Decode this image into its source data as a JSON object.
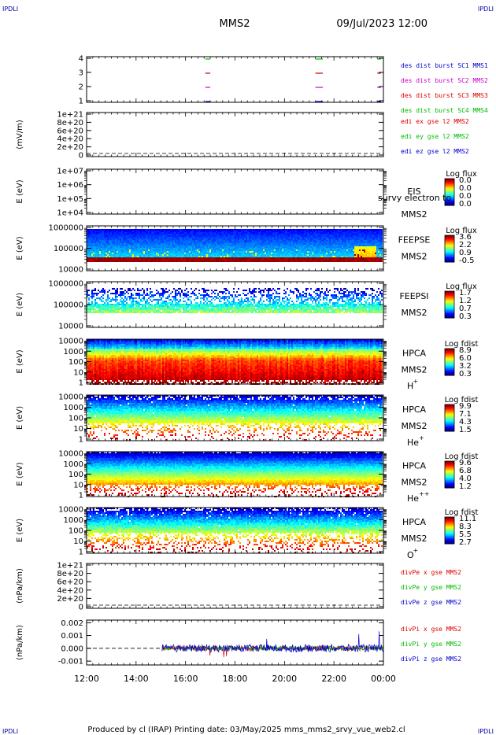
{
  "header": {
    "corner_left": "IPDLI",
    "corner_right": "IPDLI",
    "title": "MMS2",
    "datetime": "09/Jul/2023 12:00"
  },
  "footer": {
    "corner_left": "IPDLI",
    "corner_right": "IPDLI",
    "text": "Produced by cl (IRAP)   Printing date: 03/May/2025   mms_mms2_srvy_vue_web2.cl"
  },
  "x_axis": {
    "range_hours": [
      12,
      24
    ],
    "tick_labels": [
      "12:00",
      "14:00",
      "16:00",
      "18:00",
      "20:00",
      "22:00",
      "00:00"
    ]
  },
  "colors": {
    "mms1": "#0000cc",
    "mms2": "#cc00cc",
    "mms3": "#dd0000",
    "mms4": "#00bb00",
    "x_comp": "#dd0000",
    "y_comp": "#00bb00",
    "z_comp": "#0000cc"
  },
  "chart_data": [
    {
      "type": "scatter",
      "panel": "burst",
      "y_ticks": [
        "4",
        "3",
        "2",
        "1"
      ],
      "legend": [
        "des dist burst SC1 MMS1",
        "des dist burst SC2 MMS2",
        "des dist burst SC3 MMS3",
        "des dist burst SC4 MMS4"
      ],
      "intervals_hours": [
        [
          16.8,
          17.0
        ],
        [
          21.25,
          21.55
        ],
        [
          23.75,
          23.9
        ]
      ]
    },
    {
      "type": "line",
      "panel": "edi",
      "ylabel": "(mV/m)",
      "y_ticks": [
        "1e+21",
        "8e+20",
        "6e+20",
        "4e+20",
        "2e+20",
        "0"
      ],
      "legend": [
        "edi ex gse l2 MMS2",
        "edi ey gse l2 MMS2",
        "edi ez gse l2 MMS2"
      ]
    },
    {
      "type": "heatmap",
      "panel": "eis",
      "ylabel": "E (eV)",
      "y_ticks": [
        "1e+07",
        "1e+06",
        "1e+05",
        "1e+04"
      ],
      "labels": [
        "EIS",
        "MMS2"
      ],
      "overlay_text": "survy electron to",
      "colorbar_title": "Log flux",
      "colorbar_ticks": [
        "0.0",
        "0.0",
        "0.0",
        "0.0"
      ]
    },
    {
      "type": "heatmap",
      "panel": "feepse",
      "ylabel": "E (eV)",
      "y_ticks": [
        "1000000",
        "100000",
        "10000"
      ],
      "labels": [
        "FEEPSE",
        "MMS2"
      ],
      "colorbar_title": "Log flux",
      "colorbar_ticks": [
        "3.6",
        "2.2",
        "0.9",
        "-0.5"
      ]
    },
    {
      "type": "heatmap",
      "panel": "feepsi",
      "ylabel": "E (eV)",
      "y_ticks": [
        "1000000",
        "100000",
        "10000"
      ],
      "labels": [
        "FEEPSI",
        "MMS2"
      ],
      "colorbar_title": "Log flux",
      "colorbar_ticks": [
        "1.7",
        "1.2",
        "0.7",
        "0.3"
      ]
    },
    {
      "type": "heatmap",
      "panel": "hpca_h",
      "ylabel": "E (eV)",
      "y_ticks": [
        "10000",
        "1000",
        "100",
        "10",
        "1"
      ],
      "labels": [
        "HPCA",
        "MMS2"
      ],
      "species": "H",
      "charge": "+",
      "colorbar_title": "Log fdist",
      "colorbar_ticks": [
        "8.9",
        "6.0",
        "3.2",
        "0.3"
      ]
    },
    {
      "type": "heatmap",
      "panel": "hpca_he",
      "ylabel": "E (eV)",
      "y_ticks": [
        "10000",
        "1000",
        "100",
        "10",
        "1"
      ],
      "labels": [
        "HPCA",
        "MMS2"
      ],
      "species": "He",
      "charge": "+",
      "colorbar_title": "Log fdist",
      "colorbar_ticks": [
        "9.9",
        "7.1",
        "4.3",
        "1.5"
      ]
    },
    {
      "type": "heatmap",
      "panel": "hpca_hepp",
      "ylabel": "E (eV)",
      "y_ticks": [
        "10000",
        "1000",
        "100",
        "10",
        "1"
      ],
      "labels": [
        "HPCA",
        "MMS2"
      ],
      "species": "He",
      "charge": "++",
      "colorbar_title": "Log fdist",
      "colorbar_ticks": [
        "9.6",
        "6.8",
        "4.0",
        "1.2"
      ]
    },
    {
      "type": "heatmap",
      "panel": "hpca_o",
      "ylabel": "E (eV)",
      "y_ticks": [
        "10000",
        "1000",
        "100",
        "10",
        "1"
      ],
      "labels": [
        "HPCA",
        "MMS2"
      ],
      "species": "O",
      "charge": "+",
      "colorbar_title": "Log fdist",
      "colorbar_ticks": [
        "11.1",
        "8.3",
        "5.5",
        "2.7"
      ]
    },
    {
      "type": "line",
      "panel": "divpe",
      "ylabel": "(nPa/km)",
      "y_ticks": [
        "1e+21",
        "8e+20",
        "6e+20",
        "4e+20",
        "2e+20",
        "0"
      ],
      "legend": [
        "divPe x gse MMS2",
        "divPe y gse MMS2",
        "divPe z gse MMS2"
      ]
    },
    {
      "type": "line",
      "panel": "divpi",
      "ylabel": "(nPa/km)",
      "y_ticks": [
        "0.002",
        "0.001",
        "0.000",
        "-0.001"
      ],
      "ylim": [
        -0.0013,
        0.0022
      ],
      "legend": [
        "divPi x gse MMS2",
        "divPi y gse MMS2",
        "divPi z gse MMS2"
      ],
      "data_start_hour": 15.05,
      "series": [
        {
          "component": "x",
          "noise_amplitude": 0.0002
        },
        {
          "component": "y",
          "noise_amplitude": 0.00015
        },
        {
          "component": "z",
          "noise_amplitude": 0.0003
        }
      ]
    }
  ]
}
